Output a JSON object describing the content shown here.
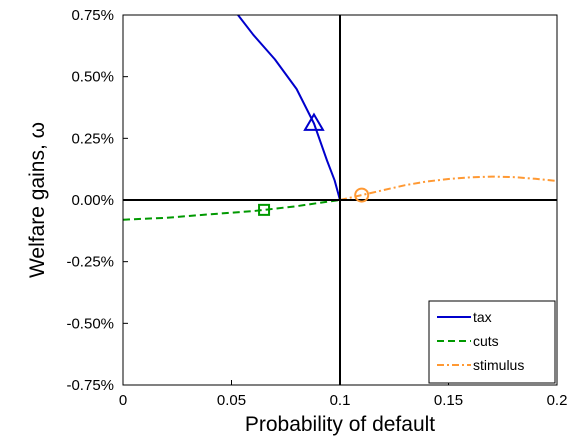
{
  "chart_data": {
    "type": "line",
    "title": "",
    "xlabel": "Probability of default",
    "ylabel": "Welfare gains, ω",
    "xlim": [
      0,
      0.2
    ],
    "ylim": [
      -0.0075,
      0.0075
    ],
    "x_ticks": [
      0,
      0.05,
      0.1,
      0.15,
      0.2
    ],
    "x_tick_labels": [
      "0",
      "0.05",
      "0.1",
      "0.15",
      "0.2"
    ],
    "y_ticks": [
      0.0075,
      0.005,
      0.0025,
      0,
      -0.0025,
      -0.005,
      -0.0075
    ],
    "y_tick_labels": [
      "0.75%",
      "0.50%",
      "0.25%",
      "0.00%",
      "-0.25%",
      "-0.50%",
      "-0.75%"
    ],
    "grid": false,
    "legend_position": "bottom-right",
    "reference_lines": {
      "x": 0.1,
      "y": 0
    },
    "series": [
      {
        "name": "tax",
        "color": "#0000cc",
        "dash": "solid",
        "marker": "triangle",
        "marker_point": [
          0.088,
          0.0031
        ],
        "x": [
          0.053,
          0.06,
          0.07,
          0.08,
          0.088,
          0.094,
          0.0975,
          0.1
        ],
        "y": [
          0.0075,
          0.0067,
          0.0057,
          0.0045,
          0.0031,
          0.0016,
          0.0008,
          0.0
        ]
      },
      {
        "name": "cuts",
        "color": "#009900",
        "dash": "dashed",
        "marker": "square",
        "marker_point": [
          0.065,
          -0.0004
        ],
        "x": [
          0.0,
          0.02,
          0.04,
          0.06,
          0.065,
          0.08,
          0.09,
          0.1
        ],
        "y": [
          -0.0008,
          -0.00072,
          -0.00058,
          -0.00045,
          -0.0004,
          -0.00025,
          -0.00012,
          0.0
        ]
      },
      {
        "name": "stimulus",
        "color": "#ff9933",
        "dash": "dash-dot",
        "marker": "circle",
        "marker_point": [
          0.11,
          0.0002
        ],
        "x": [
          0.1,
          0.11,
          0.12,
          0.13,
          0.14,
          0.15,
          0.16,
          0.17,
          0.18,
          0.19,
          0.2
        ],
        "y": [
          0.0,
          0.0002,
          0.0004,
          0.0006,
          0.00075,
          0.00085,
          0.00092,
          0.00095,
          0.00093,
          0.00086,
          0.00077
        ]
      }
    ]
  }
}
